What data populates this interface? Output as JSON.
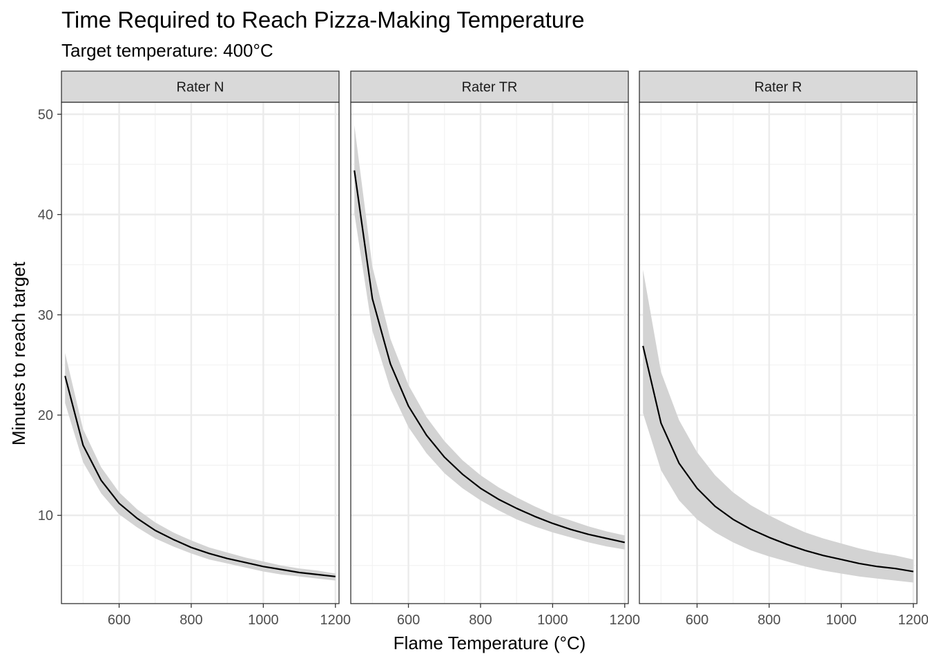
{
  "chart_data": {
    "type": "line",
    "title": "Time Required to Reach Pizza-Making Temperature",
    "subtitle": "Target temperature: 400°C",
    "xlabel": "Flame Temperature (°C)",
    "ylabel": "Minutes to reach target",
    "xlim": [
      440,
      1210
    ],
    "ylim": [
      1.2,
      51.2
    ],
    "x_ticks": [
      600,
      800,
      1000,
      1200
    ],
    "y_ticks": [
      10,
      20,
      30,
      40,
      50
    ],
    "grid": true,
    "colors": {
      "line": "#000000",
      "ribbon": "#d3d3d3",
      "strip_fill": "#d9d9d9",
      "grid_major": "#ebebeb",
      "panel_border": "#333333"
    },
    "x": [
      450,
      500,
      550,
      600,
      650,
      700,
      750,
      800,
      850,
      900,
      950,
      1000,
      1050,
      1100,
      1150,
      1200
    ],
    "panels": [
      {
        "label": "Rater N",
        "values": [
          23.9,
          17.0,
          13.5,
          11.2,
          9.7,
          8.5,
          7.6,
          6.8,
          6.2,
          5.7,
          5.3,
          4.9,
          4.6,
          4.3,
          4.1,
          3.9
        ],
        "lower": [
          21.2,
          15.3,
          12.2,
          10.1,
          8.8,
          7.7,
          6.9,
          6.2,
          5.6,
          5.2,
          4.8,
          4.4,
          4.1,
          3.9,
          3.7,
          3.5
        ],
        "upper": [
          26.2,
          18.6,
          14.8,
          12.3,
          10.6,
          9.3,
          8.3,
          7.5,
          6.8,
          6.3,
          5.8,
          5.4,
          5.0,
          4.7,
          4.5,
          4.2
        ]
      },
      {
        "label": "Rater TR",
        "values": [
          44.4,
          31.6,
          25.1,
          20.9,
          18.0,
          15.8,
          14.1,
          12.7,
          11.6,
          10.7,
          9.9,
          9.2,
          8.6,
          8.1,
          7.7,
          7.3
        ],
        "lower": [
          40.1,
          28.4,
          22.6,
          18.8,
          16.2,
          14.2,
          12.7,
          11.5,
          10.5,
          9.6,
          8.9,
          8.3,
          7.8,
          7.3,
          6.9,
          6.6
        ],
        "upper": [
          48.9,
          34.8,
          27.6,
          23.0,
          19.8,
          17.4,
          15.5,
          14.0,
          12.8,
          11.8,
          10.9,
          10.1,
          9.5,
          8.9,
          8.4,
          8.0
        ]
      },
      {
        "label": "Rater R",
        "values": [
          26.9,
          19.2,
          15.2,
          12.7,
          10.9,
          9.6,
          8.6,
          7.8,
          7.1,
          6.5,
          6.0,
          5.6,
          5.2,
          4.9,
          4.7,
          4.4
        ],
        "lower": [
          20.2,
          14.5,
          11.5,
          9.6,
          8.3,
          7.3,
          6.5,
          5.9,
          5.4,
          4.9,
          4.5,
          4.2,
          3.9,
          3.7,
          3.5,
          3.3
        ],
        "upper": [
          34.5,
          24.3,
          19.5,
          16.3,
          14.0,
          12.3,
          11.0,
          10.0,
          9.1,
          8.3,
          7.7,
          7.2,
          6.7,
          6.3,
          6.0,
          5.6
        ]
      }
    ]
  }
}
